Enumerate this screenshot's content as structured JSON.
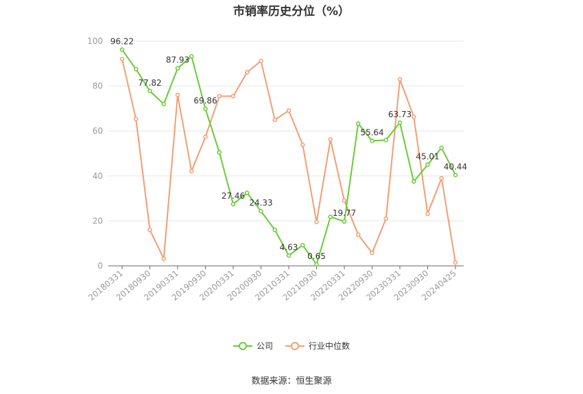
{
  "title": "市销率历史分位（%）",
  "source": "数据来源：恒生聚源",
  "colors": {
    "company": "#66cc33",
    "industry": "#f59c72",
    "grid": "#e6e6e6",
    "axis": "#999999"
  },
  "chart_data": {
    "type": "line",
    "title": "市销率历史分位（%）",
    "xlabel": "",
    "ylabel": "",
    "ylim": [
      0,
      100
    ],
    "yticks": [
      0,
      20,
      40,
      60,
      80,
      100
    ],
    "grid": true,
    "legend_position": "bottom",
    "tick_labels": [
      "20180331",
      "20180930",
      "20190331",
      "20190930",
      "20200331",
      "20200930",
      "20210331",
      "20210930",
      "20220331",
      "20220930",
      "20230331",
      "20230930",
      "20240425"
    ],
    "x": [
      "20180331",
      "20180630",
      "20180930",
      "20181231",
      "20190331",
      "20190630",
      "20190930",
      "20191231",
      "20200331",
      "20200630",
      "20200930",
      "20201231",
      "20210331",
      "20210630",
      "20210930",
      "20211231",
      "20220331",
      "20220630",
      "20220930",
      "20221231",
      "20230331",
      "20230630",
      "20230930",
      "20231231",
      "20240425"
    ],
    "series": [
      {
        "name": "公司",
        "values": [
          96.22,
          87.5,
          77.82,
          72.0,
          87.93,
          93.2,
          69.86,
          50.5,
          27.46,
          32.5,
          24.33,
          16.0,
          4.63,
          9.2,
          0.65,
          21.8,
          19.77,
          63.3,
          55.64,
          56.0,
          63.73,
          37.5,
          45.01,
          52.5,
          40.44
        ],
        "labels": [
          "96.22",
          "",
          "77.82",
          "",
          "87.93",
          "",
          "69.86",
          "",
          "27.46",
          "",
          "24.33",
          "",
          "4.63",
          "",
          "0.65",
          "",
          "19.77",
          "",
          "55.64",
          "",
          "63.73",
          "",
          "45.01",
          "",
          "40.44"
        ]
      },
      {
        "name": "行业中位数",
        "values": [
          92.0,
          65.3,
          16.0,
          3.2,
          76.0,
          42.2,
          57.4,
          75.5,
          75.5,
          86.1,
          91.2,
          65.0,
          69.1,
          53.9,
          19.5,
          56.2,
          29.1,
          13.9,
          5.8,
          21.0,
          83.0,
          66.3,
          23.2,
          39.0,
          1.5
        ],
        "labels": []
      }
    ]
  }
}
